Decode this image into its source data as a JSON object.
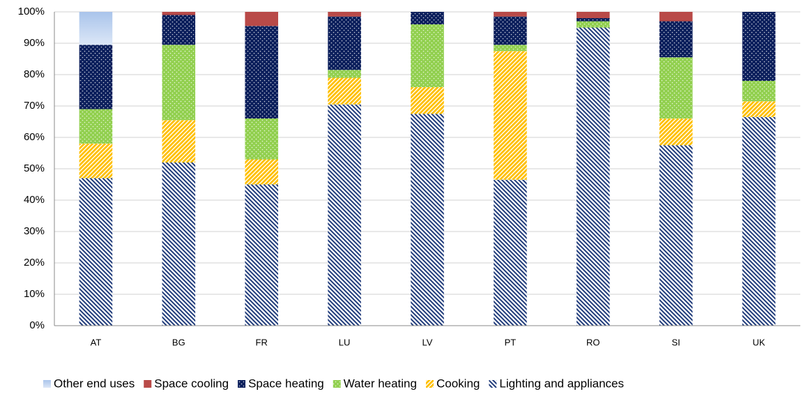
{
  "chart_data": {
    "type": "stacked_bar",
    "categories": [
      "AT",
      "BG",
      "FR",
      "LU",
      "LV",
      "PT",
      "RO",
      "SI",
      "UK"
    ],
    "series": [
      {
        "name": "Other end uses",
        "color": "#a9c4eb",
        "values": [
          10.5,
          0,
          0,
          0,
          0,
          0,
          0,
          0,
          0
        ]
      },
      {
        "name": "Space cooling",
        "color": "#b94a48",
        "values": [
          0,
          1,
          4.5,
          1.5,
          0,
          1.5,
          2,
          3,
          0
        ]
      },
      {
        "name": "Space heating",
        "color": "#0c1f5c",
        "values": [
          20.5,
          9.5,
          29.5,
          17,
          4,
          9,
          1,
          11.5,
          22
        ]
      },
      {
        "name": "Water heating",
        "color": "#92d050",
        "values": [
          11,
          24,
          13,
          2.5,
          20,
          2,
          2,
          19.5,
          6.5
        ]
      },
      {
        "name": "Cooking",
        "color": "#ffc000",
        "values": [
          11,
          13.5,
          8,
          8.5,
          8.5,
          41,
          0,
          8.5,
          5
        ]
      },
      {
        "name": "Lighting and appliances",
        "color": "#1f3b7a",
        "values": [
          47,
          52,
          45,
          70.5,
          67.5,
          46.5,
          95,
          57.5,
          66.5
        ]
      }
    ],
    "ylim": [
      0,
      100
    ],
    "yticks": [
      {
        "value": 0,
        "label": "0%"
      },
      {
        "value": 10,
        "label": "10%"
      },
      {
        "value": 20,
        "label": "20%"
      },
      {
        "value": 30,
        "label": "30%"
      },
      {
        "value": 40,
        "label": "40%"
      },
      {
        "value": 50,
        "label": "50%"
      },
      {
        "value": 60,
        "label": "60%"
      },
      {
        "value": 70,
        "label": "70%"
      },
      {
        "value": 80,
        "label": "80%"
      },
      {
        "value": 90,
        "label": "90%"
      },
      {
        "value": 100,
        "label": "100%"
      }
    ],
    "grid": true,
    "legend": "bottom"
  }
}
